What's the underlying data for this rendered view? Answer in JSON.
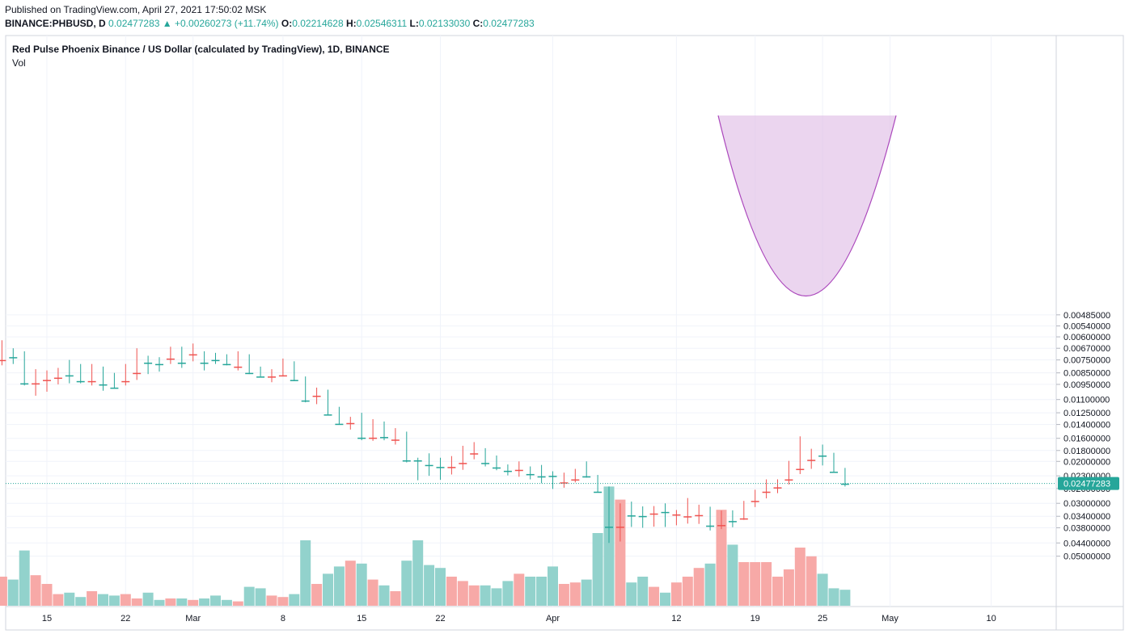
{
  "header": {
    "published": "Published on TradingView.com, April 27, 2021 17:50:02 MSK",
    "symbol": "BINANCE:PHBUSD, D",
    "last": "0.02477283",
    "change": "+0.00260273 (+11.74%)",
    "open_label": "O:",
    "open": "0.02214628",
    "high_label": "H:",
    "high": "0.02546311",
    "low_label": "L:",
    "low": "0.02133030",
    "close_label": "C:",
    "close": "0.02477283"
  },
  "legend": {
    "title": "Red Pulse Phoenix Binance / US Dollar (calculated by TradingView), 1D, BINANCE",
    "volume": "Vol"
  },
  "chart_data": {
    "type": "candlestick",
    "scale": "log",
    "last_price": "0.02477283",
    "colors": {
      "up": "#26a69a",
      "down": "#ef5350",
      "vol_up": "#92d2cc",
      "vol_down": "#f7a9a7",
      "pattern_fill": "#e1bee7",
      "pattern_stroke": "#ab47bc",
      "price_tag": "#26a69a"
    },
    "y_ticks": [
      "0.05000000",
      "0.04400000",
      "0.03800000",
      "0.03400000",
      "0.03000000",
      "0.02600000",
      "0.02300000",
      "0.02000000",
      "0.01800000",
      "0.01600000",
      "0.01400000",
      "0.01250000",
      "0.01100000",
      "0.00950000",
      "0.00850000",
      "0.00750000",
      "0.00670000",
      "0.00600000",
      "0.00540000",
      "0.00485000"
    ],
    "y_tick_values": [
      0.05,
      0.044,
      0.038,
      0.034,
      0.03,
      0.026,
      0.023,
      0.02,
      0.018,
      0.016,
      0.014,
      0.0125,
      0.011,
      0.0095,
      0.0085,
      0.0075,
      0.0067,
      0.006,
      0.0054,
      0.00485
    ],
    "x_ticks": [
      {
        "label": "15",
        "day": 15
      },
      {
        "label": "22",
        "day": 22
      },
      {
        "label": "Mar",
        "day": 28
      },
      {
        "label": "8",
        "day": 36
      },
      {
        "label": "15",
        "day": 43
      },
      {
        "label": "22",
        "day": 50
      },
      {
        "label": "Apr",
        "day": 60
      },
      {
        "label": "12",
        "day": 71
      },
      {
        "label": "19",
        "day": 78
      },
      {
        "label": "25",
        "day": 84
      },
      {
        "label": "May",
        "day": 90
      },
      {
        "label": "10",
        "day": 99
      }
    ],
    "candles": [
      {
        "day": 11,
        "o": 0.0075,
        "h": 0.0079,
        "l": 0.0062,
        "c": 0.007,
        "v": 0.2
      },
      {
        "day": 12,
        "o": 0.0071,
        "h": 0.0078,
        "l": 0.0067,
        "c": 0.0073,
        "v": 0.18
      },
      {
        "day": 13,
        "o": 0.0073,
        "h": 0.0096,
        "l": 0.0069,
        "c": 0.0094,
        "v": 0.38
      },
      {
        "day": 14,
        "o": 0.0094,
        "h": 0.0106,
        "l": 0.0082,
        "c": 0.0091,
        "v": 0.21
      },
      {
        "day": 15,
        "o": 0.0091,
        "h": 0.0102,
        "l": 0.0083,
        "c": 0.0085,
        "v": 0.15
      },
      {
        "day": 16,
        "o": 0.0089,
        "h": 0.0095,
        "l": 0.0081,
        "c": 0.0086,
        "v": 0.08
      },
      {
        "day": 17,
        "o": 0.0082,
        "h": 0.0094,
        "l": 0.0075,
        "c": 0.0087,
        "v": 0.09
      },
      {
        "day": 18,
        "o": 0.0082,
        "h": 0.0094,
        "l": 0.0078,
        "c": 0.0092,
        "v": 0.06
      },
      {
        "day": 19,
        "o": 0.0092,
        "h": 0.0096,
        "l": 0.0078,
        "c": 0.0082,
        "v": 0.1
      },
      {
        "day": 20,
        "o": 0.0083,
        "h": 0.0101,
        "l": 0.008,
        "c": 0.0095,
        "v": 0.08
      },
      {
        "day": 21,
        "o": 0.0093,
        "h": 0.0099,
        "l": 0.0085,
        "c": 0.0098,
        "v": 0.07
      },
      {
        "day": 22,
        "o": 0.0092,
        "h": 0.0096,
        "l": 0.0078,
        "c": 0.0085,
        "v": 0.08
      },
      {
        "day": 23,
        "o": 0.0085,
        "h": 0.0091,
        "l": 0.0067,
        "c": 0.0076,
        "v": 0.05
      },
      {
        "day": 24,
        "o": 0.0076,
        "h": 0.0086,
        "l": 0.0072,
        "c": 0.0077,
        "v": 0.09
      },
      {
        "day": 25,
        "o": 0.0077,
        "h": 0.0084,
        "l": 0.0073,
        "c": 0.0078,
        "v": 0.04
      },
      {
        "day": 26,
        "o": 0.0074,
        "h": 0.0078,
        "l": 0.0066,
        "c": 0.0068,
        "v": 0.05
      },
      {
        "day": 27,
        "o": 0.0068,
        "h": 0.0081,
        "l": 0.0066,
        "c": 0.0077,
        "v": 0.05
      },
      {
        "day": 28,
        "o": 0.0071,
        "h": 0.0076,
        "l": 0.0064,
        "c": 0.0069,
        "v": 0.04
      },
      {
        "day": 29,
        "o": 0.0071,
        "h": 0.0083,
        "l": 0.0069,
        "c": 0.0077,
        "v": 0.05
      },
      {
        "day": 30,
        "o": 0.0073,
        "h": 0.0078,
        "l": 0.007,
        "c": 0.0075,
        "v": 0.07
      },
      {
        "day": 31,
        "o": 0.0074,
        "h": 0.0079,
        "l": 0.0071,
        "c": 0.0078,
        "v": 0.04
      },
      {
        "day": 32,
        "o": 0.008,
        "h": 0.0083,
        "l": 0.0069,
        "c": 0.0071,
        "v": 0.03
      },
      {
        "day": 33,
        "o": 0.0072,
        "h": 0.0086,
        "l": 0.0071,
        "c": 0.0085,
        "v": 0.13
      },
      {
        "day": 34,
        "o": 0.0084,
        "h": 0.0088,
        "l": 0.008,
        "c": 0.0088,
        "v": 0.12
      },
      {
        "day": 35,
        "o": 0.0088,
        "h": 0.0093,
        "l": 0.0082,
        "c": 0.0087,
        "v": 0.07
      },
      {
        "day": 36,
        "o": 0.0087,
        "h": 0.0088,
        "l": 0.0074,
        "c": 0.0085,
        "v": 0.06
      },
      {
        "day": 37,
        "o": 0.0085,
        "h": 0.0092,
        "l": 0.0076,
        "c": 0.0091,
        "v": 0.08
      },
      {
        "day": 38,
        "o": 0.009,
        "h": 0.0113,
        "l": 0.0088,
        "c": 0.0111,
        "v": 0.45
      },
      {
        "day": 39,
        "o": 0.0106,
        "h": 0.0115,
        "l": 0.0098,
        "c": 0.0104,
        "v": 0.15
      },
      {
        "day": 40,
        "o": 0.0104,
        "h": 0.0128,
        "l": 0.01,
        "c": 0.0127,
        "v": 0.22
      },
      {
        "day": 41,
        "o": 0.0126,
        "h": 0.014,
        "l": 0.0118,
        "c": 0.0139,
        "v": 0.27
      },
      {
        "day": 42,
        "o": 0.0138,
        "h": 0.0147,
        "l": 0.013,
        "c": 0.0133,
        "v": 0.31
      },
      {
        "day": 43,
        "o": 0.013,
        "h": 0.0163,
        "l": 0.0125,
        "c": 0.0159,
        "v": 0.29
      },
      {
        "day": 44,
        "o": 0.0159,
        "h": 0.0164,
        "l": 0.0133,
        "c": 0.0152,
        "v": 0.18
      },
      {
        "day": 45,
        "o": 0.0146,
        "h": 0.0163,
        "l": 0.0136,
        "c": 0.0158,
        "v": 0.14
      },
      {
        "day": 46,
        "o": 0.0162,
        "h": 0.017,
        "l": 0.0145,
        "c": 0.0158,
        "v": 0.1
      },
      {
        "day": 47,
        "o": 0.0153,
        "h": 0.0202,
        "l": 0.015,
        "c": 0.0198,
        "v": 0.31
      },
      {
        "day": 48,
        "o": 0.0198,
        "h": 0.024,
        "l": 0.0193,
        "c": 0.0198,
        "v": 0.45
      },
      {
        "day": 49,
        "o": 0.0195,
        "h": 0.023,
        "l": 0.0185,
        "c": 0.0207,
        "v": 0.28
      },
      {
        "day": 50,
        "o": 0.0207,
        "h": 0.0239,
        "l": 0.0193,
        "c": 0.0211,
        "v": 0.26
      },
      {
        "day": 51,
        "o": 0.0211,
        "h": 0.0227,
        "l": 0.019,
        "c": 0.0201,
        "v": 0.2
      },
      {
        "day": 52,
        "o": 0.0203,
        "h": 0.0217,
        "l": 0.0172,
        "c": 0.0179,
        "v": 0.17
      },
      {
        "day": 53,
        "o": 0.0185,
        "h": 0.0196,
        "l": 0.0166,
        "c": 0.018,
        "v": 0.14
      },
      {
        "day": 54,
        "o": 0.0183,
        "h": 0.021,
        "l": 0.0176,
        "c": 0.0203,
        "v": 0.14
      },
      {
        "day": 55,
        "o": 0.0203,
        "h": 0.0218,
        "l": 0.0189,
        "c": 0.0212,
        "v": 0.12
      },
      {
        "day": 56,
        "o": 0.0212,
        "h": 0.0229,
        "l": 0.0206,
        "c": 0.0219,
        "v": 0.17
      },
      {
        "day": 57,
        "o": 0.0217,
        "h": 0.0232,
        "l": 0.02,
        "c": 0.0209,
        "v": 0.22
      },
      {
        "day": 58,
        "o": 0.0214,
        "h": 0.0238,
        "l": 0.021,
        "c": 0.0226,
        "v": 0.2
      },
      {
        "day": 59,
        "o": 0.0226,
        "h": 0.0247,
        "l": 0.0207,
        "c": 0.0231,
        "v": 0.2
      },
      {
        "day": 60,
        "o": 0.023,
        "h": 0.0261,
        "l": 0.022,
        "c": 0.023,
        "v": 0.27
      },
      {
        "day": 61,
        "o": 0.0245,
        "h": 0.0258,
        "l": 0.0223,
        "c": 0.0238,
        "v": 0.15
      },
      {
        "day": 62,
        "o": 0.0238,
        "h": 0.0245,
        "l": 0.0215,
        "c": 0.022,
        "v": 0.16
      },
      {
        "day": 63,
        "o": 0.0217,
        "h": 0.0234,
        "l": 0.02,
        "c": 0.0231,
        "v": 0.18
      },
      {
        "day": 64,
        "o": 0.0231,
        "h": 0.0269,
        "l": 0.0228,
        "c": 0.0268,
        "v": 0.5
      },
      {
        "day": 65,
        "o": 0.0268,
        "h": 0.044,
        "l": 0.0255,
        "c": 0.0376,
        "v": 0.82
      },
      {
        "day": 66,
        "o": 0.0376,
        "h": 0.0434,
        "l": 0.03,
        "c": 0.0318,
        "v": 0.73
      },
      {
        "day": 67,
        "o": 0.0318,
        "h": 0.0377,
        "l": 0.0295,
        "c": 0.0337,
        "v": 0.16
      },
      {
        "day": 68,
        "o": 0.0333,
        "h": 0.038,
        "l": 0.0309,
        "c": 0.0339,
        "v": 0.2
      },
      {
        "day": 69,
        "o": 0.0331,
        "h": 0.0376,
        "l": 0.0308,
        "c": 0.0327,
        "v": 0.13
      },
      {
        "day": 70,
        "o": 0.0323,
        "h": 0.0377,
        "l": 0.03,
        "c": 0.0326,
        "v": 0.09
      },
      {
        "day": 71,
        "o": 0.0334,
        "h": 0.0371,
        "l": 0.032,
        "c": 0.0327,
        "v": 0.16
      },
      {
        "day": 72,
        "o": 0.034,
        "h": 0.0365,
        "l": 0.0285,
        "c": 0.0321,
        "v": 0.2
      },
      {
        "day": 73,
        "o": 0.0336,
        "h": 0.0366,
        "l": 0.0304,
        "c": 0.0323,
        "v": 0.26
      },
      {
        "day": 74,
        "o": 0.0318,
        "h": 0.039,
        "l": 0.031,
        "c": 0.0372,
        "v": 0.29
      },
      {
        "day": 75,
        "o": 0.037,
        "h": 0.0385,
        "l": 0.0322,
        "c": 0.035,
        "v": 0.66
      },
      {
        "day": 76,
        "o": 0.035,
        "h": 0.0378,
        "l": 0.0321,
        "c": 0.0356,
        "v": 0.42
      },
      {
        "day": 77,
        "o": 0.0347,
        "h": 0.0352,
        "l": 0.0293,
        "c": 0.0296,
        "v": 0.3
      },
      {
        "day": 78,
        "o": 0.0293,
        "h": 0.0311,
        "l": 0.0263,
        "c": 0.0267,
        "v": 0.3
      },
      {
        "day": 79,
        "o": 0.0268,
        "h": 0.0286,
        "l": 0.0238,
        "c": 0.026,
        "v": 0.3
      },
      {
        "day": 80,
        "o": 0.0257,
        "h": 0.0272,
        "l": 0.0238,
        "c": 0.0245,
        "v": 0.2
      },
      {
        "day": 81,
        "o": 0.0238,
        "h": 0.025,
        "l": 0.0199,
        "c": 0.0208,
        "v": 0.25
      },
      {
        "day": 82,
        "o": 0.0215,
        "h": 0.0226,
        "l": 0.0157,
        "c": 0.0193,
        "v": 0.4
      },
      {
        "day": 83,
        "o": 0.0197,
        "h": 0.0215,
        "l": 0.0177,
        "c": 0.0183,
        "v": 0.34
      },
      {
        "day": 84,
        "o": 0.0186,
        "h": 0.0208,
        "l": 0.017,
        "c": 0.0189,
        "v": 0.22
      },
      {
        "day": 85,
        "o": 0.0188,
        "h": 0.0221,
        "l": 0.0184,
        "c": 0.0221,
        "v": 0.12
      },
      {
        "day": 86,
        "o": 0.0221,
        "h": 0.0255,
        "l": 0.0213,
        "c": 0.0248,
        "v": 0.11
      }
    ]
  }
}
